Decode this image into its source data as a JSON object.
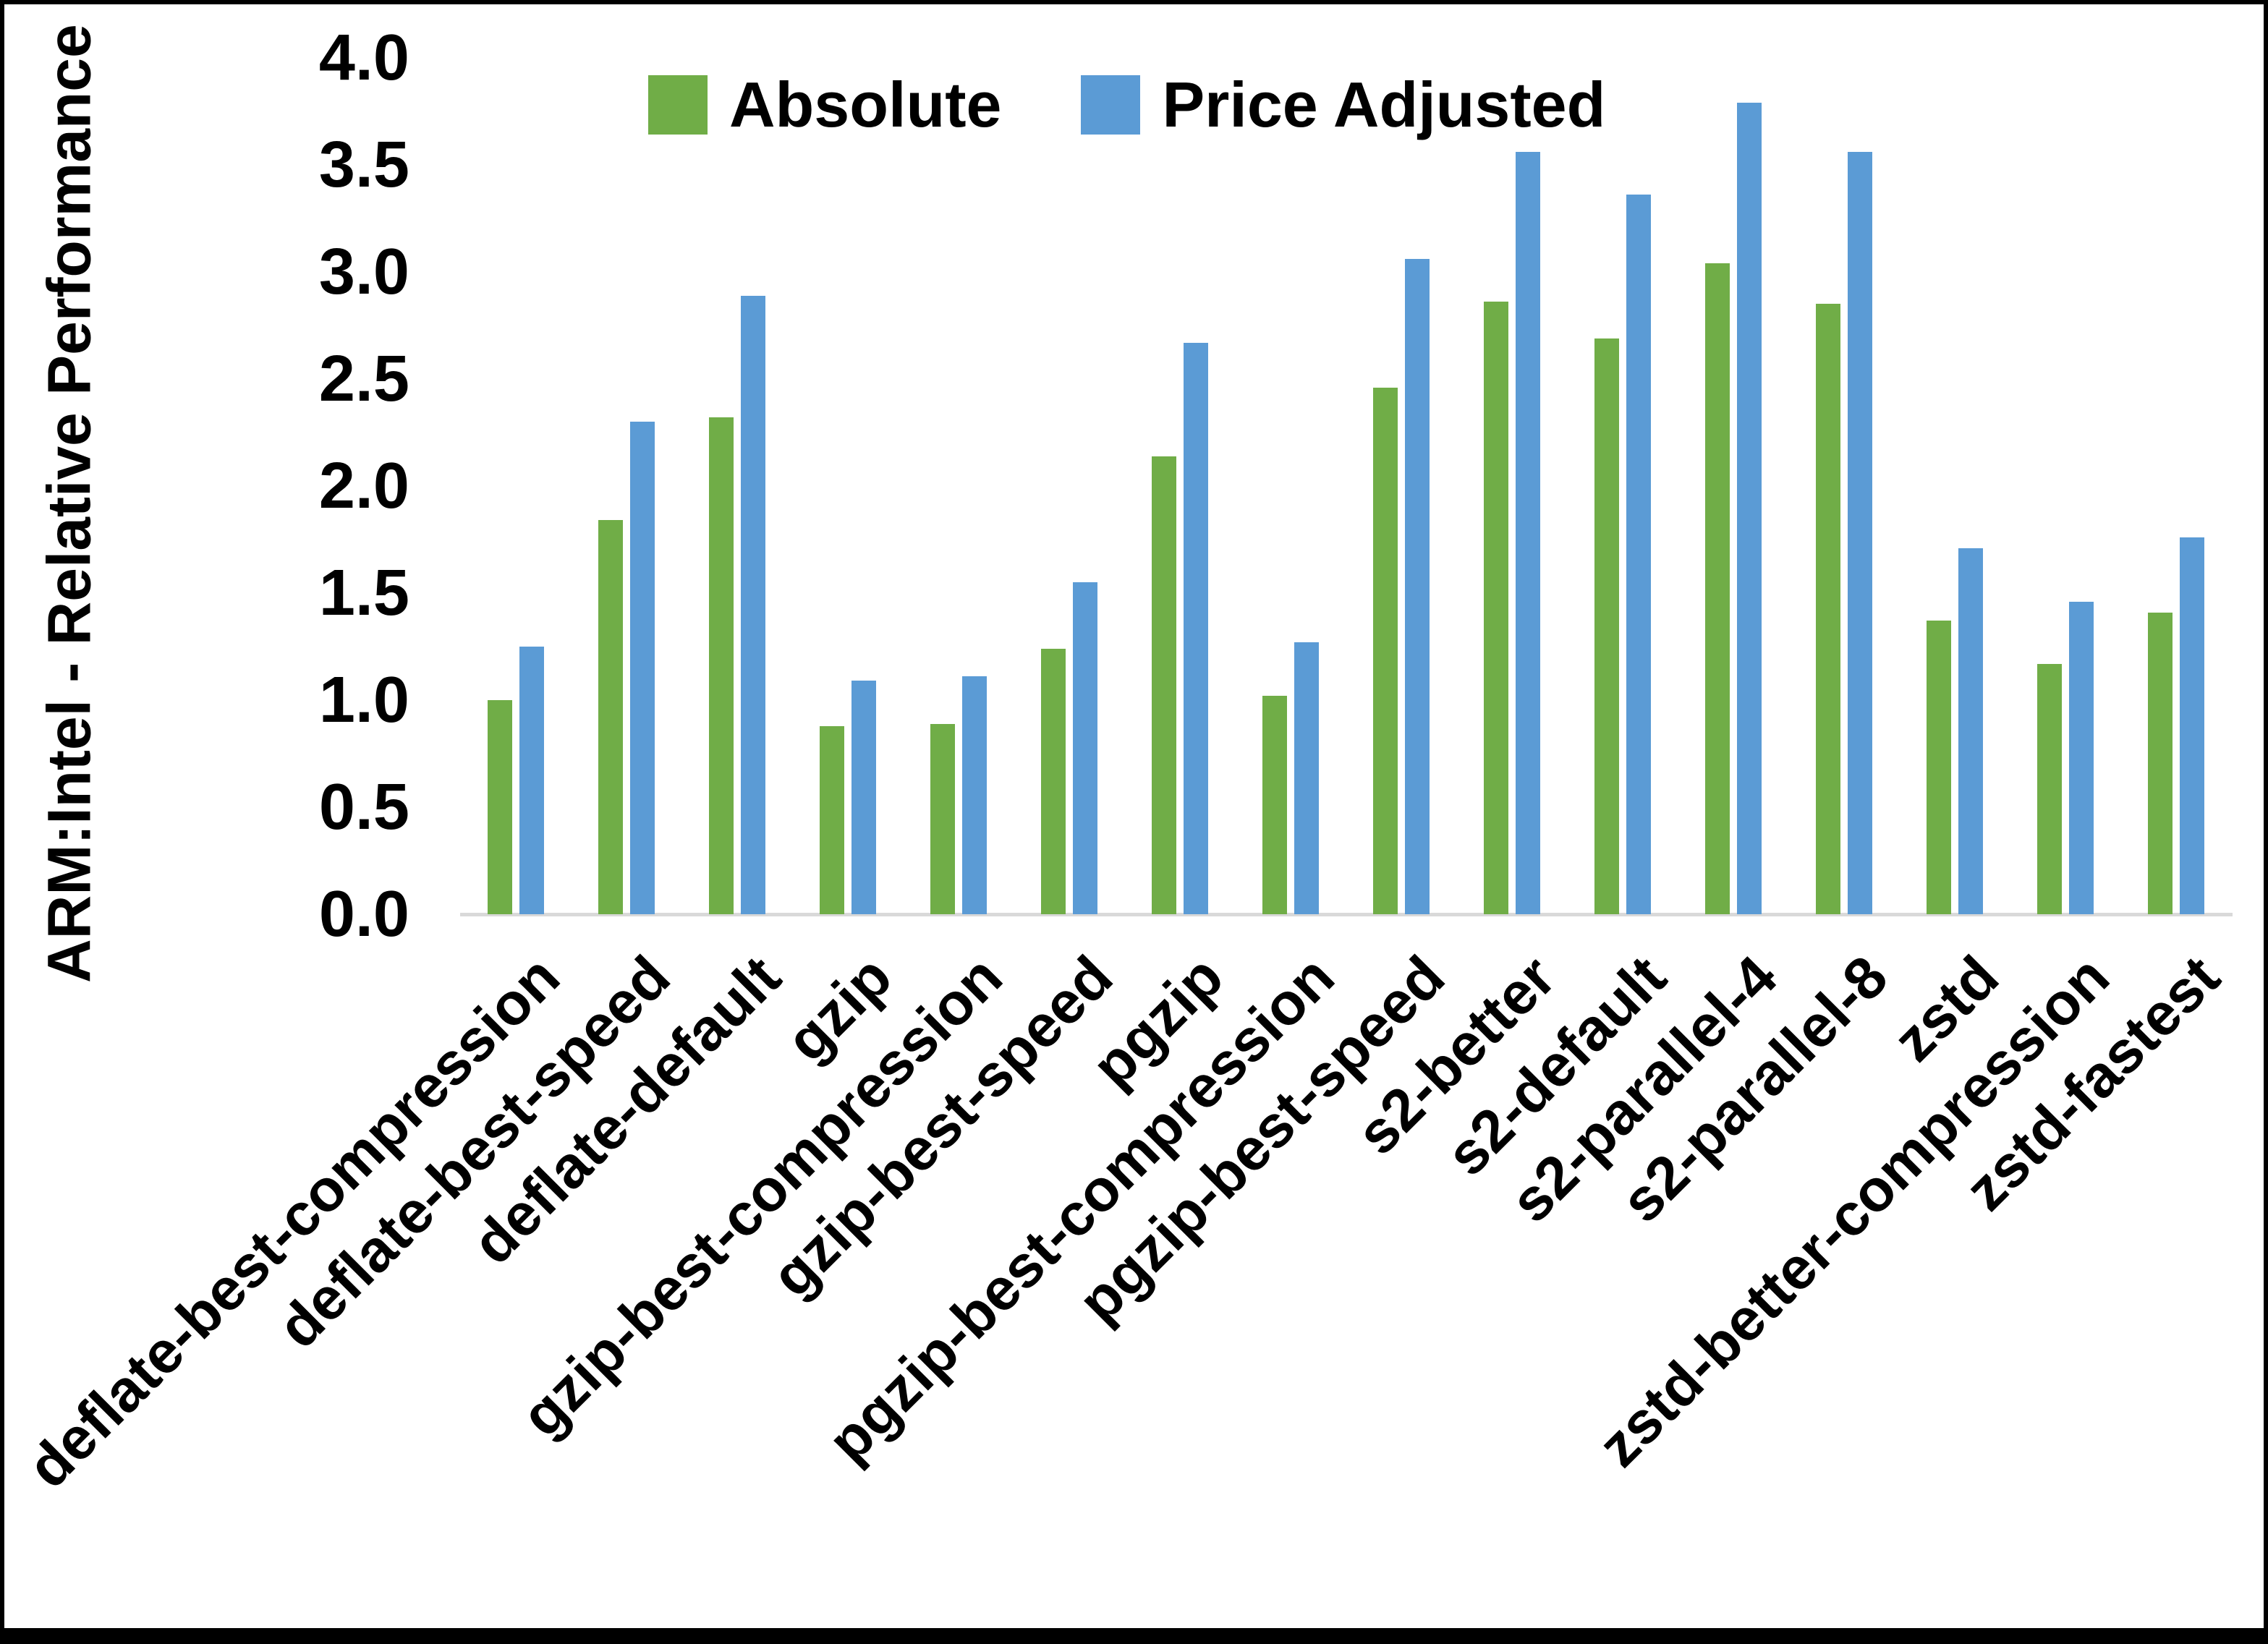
{
  "chart_data": {
    "type": "bar",
    "title": "",
    "xlabel": "",
    "ylabel": "ARM:Intel - Relative Performance",
    "ylim": [
      0.0,
      4.0
    ],
    "ytick_step": 0.5,
    "ytick_labels": [
      "4.0",
      "3.5",
      "3.0",
      "2.5",
      "2.0",
      "1.5",
      "1.0",
      "0.5",
      "0.0"
    ],
    "grid": false,
    "axis_line_color": "#d9d9d9",
    "legend_position": "top",
    "categories": [
      "deflate-best-compression",
      "deflate-best-speed",
      "deflate-default",
      "gzip",
      "gzip-best-compression",
      "gzip-best-speed",
      "pgzip",
      "pgzip-best-compression",
      "pgzip-best-speed",
      "s2-better",
      "s2-default",
      "s2-parallel-4",
      "s2-parallel-8",
      "zstd",
      "zstd-better-compression",
      "zstd-fastest"
    ],
    "series": [
      {
        "name": "Absolute",
        "color": "#70ad47",
        "values": [
          1.0,
          1.84,
          2.32,
          0.88,
          0.89,
          1.24,
          2.14,
          1.02,
          2.46,
          2.86,
          2.69,
          3.04,
          2.85,
          1.37,
          1.17,
          1.41
        ]
      },
      {
        "name": "Price Adjusted",
        "color": "#5b9bd5",
        "values": [
          1.25,
          2.3,
          2.89,
          1.09,
          1.11,
          1.55,
          2.67,
          1.27,
          3.06,
          3.56,
          3.36,
          3.79,
          3.56,
          1.71,
          1.46,
          1.76
        ]
      }
    ]
  }
}
